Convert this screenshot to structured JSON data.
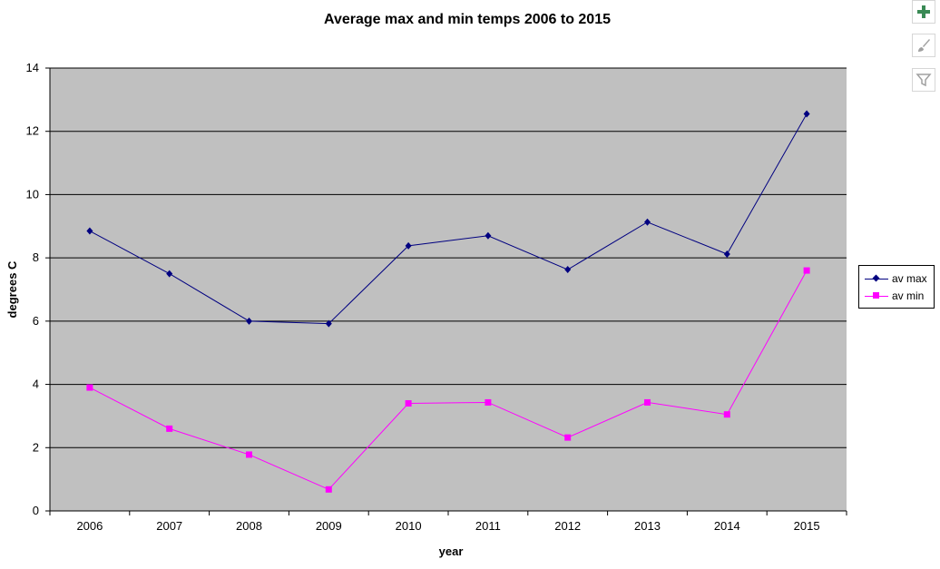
{
  "colors": {
    "plot_bg": "#c0c0c0",
    "gridline": "#000000",
    "series_max": "#000080",
    "series_min": "#ff00ff",
    "button_plus": "#3a8a55",
    "button_icon": "#a0a0a0"
  },
  "side_buttons": [
    {
      "name": "chart-elements-button",
      "icon": "plus-icon"
    },
    {
      "name": "chart-styles-button",
      "icon": "paintbrush-icon"
    },
    {
      "name": "chart-filters-button",
      "icon": "funnel-icon"
    }
  ],
  "chart_data": {
    "type": "line",
    "title": "Average max and min temps 2006 to 2015",
    "xlabel": "year",
    "ylabel": "degrees C",
    "categories": [
      "2006",
      "2007",
      "2008",
      "2009",
      "2010",
      "2011",
      "2012",
      "2013",
      "2014",
      "2015"
    ],
    "ylim": [
      0,
      14
    ],
    "yticks": [
      "0",
      "2",
      "4",
      "6",
      "8",
      "10",
      "12",
      "14"
    ],
    "grid": true,
    "legend_position": "right",
    "series": [
      {
        "name": "av max",
        "marker": "diamond",
        "values": [
          8.85,
          7.5,
          6.0,
          5.92,
          8.38,
          8.7,
          7.63,
          9.13,
          8.12,
          12.55
        ]
      },
      {
        "name": "av min",
        "marker": "square",
        "values": [
          3.9,
          2.6,
          1.78,
          0.68,
          3.4,
          3.43,
          2.32,
          3.43,
          3.05,
          7.6
        ]
      }
    ]
  }
}
